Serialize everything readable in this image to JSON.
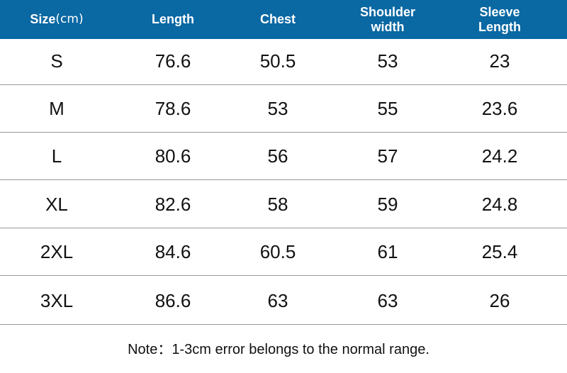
{
  "header": {
    "size_label": "Size",
    "size_unit": "(cm)",
    "length": "Length",
    "chest": "Chest",
    "shoulder_line1": "Shoulder",
    "shoulder_line2": "width",
    "sleeve_line1": "Sleeve",
    "sleeve_line2": "Length"
  },
  "rows": [
    {
      "size": "S",
      "length": "76.6",
      "chest": "50.5",
      "shoulder": "53",
      "sleeve": "23"
    },
    {
      "size": "M",
      "length": "78.6",
      "chest": "53",
      "shoulder": "55",
      "sleeve": "23.6"
    },
    {
      "size": "L",
      "length": "80.6",
      "chest": "56",
      "shoulder": "57",
      "sleeve": "24.2"
    },
    {
      "size": "XL",
      "length": "82.6",
      "chest": "58",
      "shoulder": "59",
      "sleeve": "24.8"
    },
    {
      "size": "2XL",
      "length": "84.6",
      "chest": "60.5",
      "shoulder": "61",
      "sleeve": "25.4"
    },
    {
      "size": "3XL",
      "length": "86.6",
      "chest": "63",
      "shoulder": "63",
      "sleeve": "26"
    }
  ],
  "note": "Note：1-3cm error belongs to the normal range.",
  "colors": {
    "header_bg": "#0a68a3",
    "header_text": "#ffffff",
    "body_text": "#111111",
    "divider": "#9a9a9a"
  }
}
